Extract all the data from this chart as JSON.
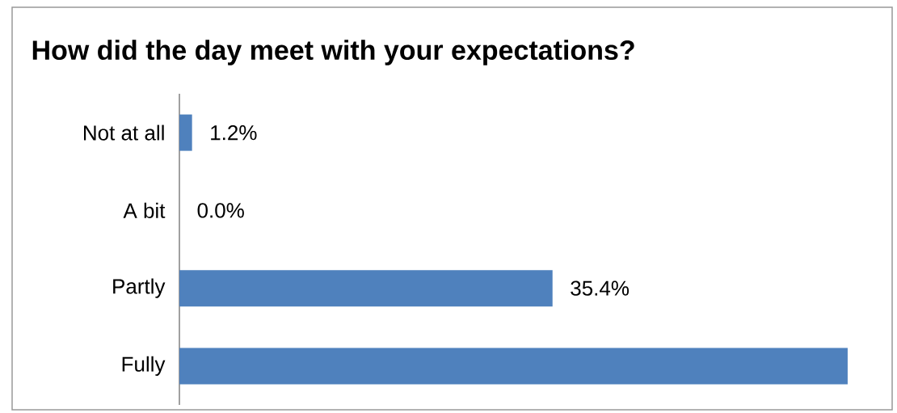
{
  "chart_data": {
    "type": "bar",
    "orientation": "horizontal",
    "title": "How did the day meet with your expectations?",
    "categories": [
      "Not at all",
      "A bit",
      "Partly",
      "Fully"
    ],
    "values": [
      1.2,
      0.0,
      35.4,
      63.4
    ],
    "value_labels": [
      "1.2%",
      "0.0%",
      "35.4%",
      null
    ],
    "color": "#4f81bd"
  }
}
